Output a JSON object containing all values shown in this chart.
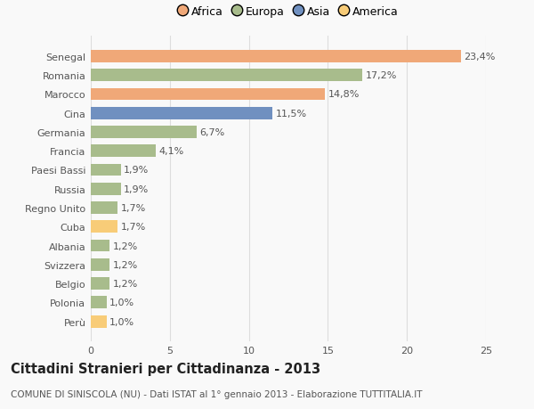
{
  "categories": [
    "Senegal",
    "Romania",
    "Marocco",
    "Cina",
    "Germania",
    "Francia",
    "Paesi Bassi",
    "Russia",
    "Regno Unito",
    "Cuba",
    "Albania",
    "Svizzera",
    "Belgio",
    "Polonia",
    "Perù"
  ],
  "values": [
    23.4,
    17.2,
    14.8,
    11.5,
    6.7,
    4.1,
    1.9,
    1.9,
    1.7,
    1.7,
    1.2,
    1.2,
    1.2,
    1.0,
    1.0
  ],
  "labels": [
    "23,4%",
    "17,2%",
    "14,8%",
    "11,5%",
    "6,7%",
    "4,1%",
    "1,9%",
    "1,9%",
    "1,7%",
    "1,7%",
    "1,2%",
    "1,2%",
    "1,2%",
    "1,0%",
    "1,0%"
  ],
  "colors": [
    "#F0A878",
    "#A8BC8C",
    "#F0A878",
    "#7090C0",
    "#A8BC8C",
    "#A8BC8C",
    "#A8BC8C",
    "#A8BC8C",
    "#A8BC8C",
    "#F8CC78",
    "#A8BC8C",
    "#A8BC8C",
    "#A8BC8C",
    "#A8BC8C",
    "#F8CC78"
  ],
  "legend_labels": [
    "Africa",
    "Europa",
    "Asia",
    "America"
  ],
  "legend_colors": [
    "#F0A878",
    "#A8BC8C",
    "#7090C0",
    "#F8CC78"
  ],
  "title": "Cittadini Stranieri per Cittadinanza - 2013",
  "subtitle": "COMUNE DI SINISCOLA (NU) - Dati ISTAT al 1° gennaio 2013 - Elaborazione TUTTITALIA.IT",
  "xlim": [
    0,
    25
  ],
  "xticks": [
    0,
    5,
    10,
    15,
    20,
    25
  ],
  "bg_color": "#f9f9f9",
  "grid_color": "#dddddd",
  "bar_height": 0.65,
  "label_fontsize": 8,
  "tick_fontsize": 8,
  "title_fontsize": 10.5,
  "subtitle_fontsize": 7.5
}
